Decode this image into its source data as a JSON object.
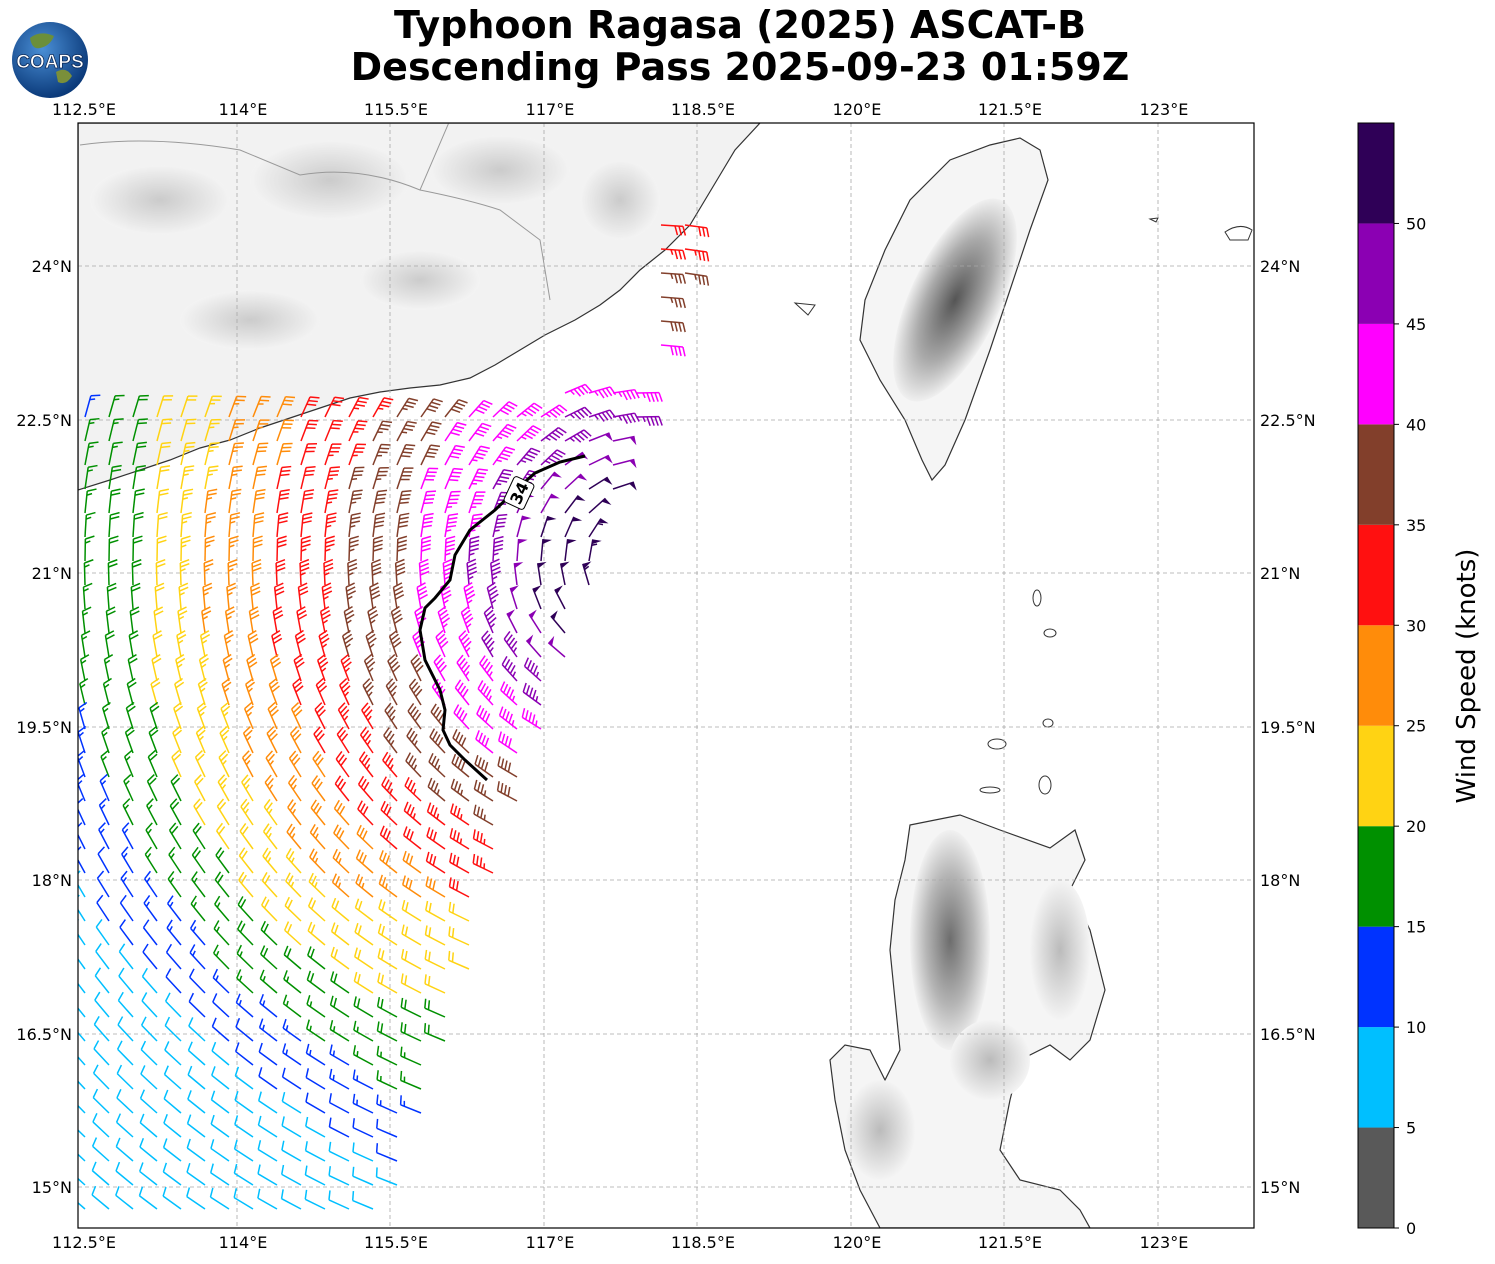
{
  "title": {
    "line1": "Typhoon Ragasa (2025) ASCAT-B",
    "line2": "Descending Pass 2025-09-23 01:59Z"
  },
  "logo": {
    "text": "COAPS",
    "icon": "globe-icon"
  },
  "axes": {
    "lon_labels": [
      "112.5°E",
      "114°E",
      "115.5°E",
      "117°E",
      "118.5°E",
      "120°E",
      "121.5°E",
      "123°E"
    ],
    "lat_labels": [
      "24°N",
      "22.5°N",
      "21°N",
      "19.5°N",
      "18°N",
      "16.5°N",
      "15°N"
    ]
  },
  "contour": {
    "label": "34",
    "value_knots": 34
  },
  "colorbar": {
    "label": "Wind Speed (knots)",
    "ticks": [
      "0",
      "5",
      "10",
      "15",
      "20",
      "25",
      "30",
      "35",
      "40",
      "45",
      "50"
    ],
    "bins": [
      {
        "from": 0,
        "to": 5,
        "color": "#595959"
      },
      {
        "from": 5,
        "to": 10,
        "color": "#00bfff"
      },
      {
        "from": 10,
        "to": 15,
        "color": "#0033ff"
      },
      {
        "from": 15,
        "to": 20,
        "color": "#009000"
      },
      {
        "from": 20,
        "to": 25,
        "color": "#ffd313"
      },
      {
        "from": 25,
        "to": 30,
        "color": "#ff8c0a"
      },
      {
        "from": 30,
        "to": 35,
        "color": "#ff1010"
      },
      {
        "from": 35,
        "to": 40,
        "color": "#823f2b"
      },
      {
        "from": 40,
        "to": 45,
        "color": "#ff00ff"
      },
      {
        "from": 45,
        "to": 50,
        "color": "#8b00b3"
      },
      {
        "from": 50,
        "to": 55,
        "color": "#2f0057"
      }
    ]
  }
}
